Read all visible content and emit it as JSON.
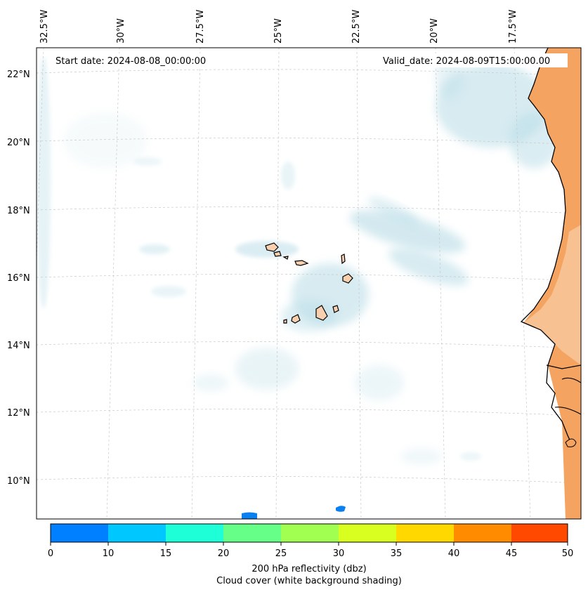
{
  "map": {
    "start_date": "Start date: 2024-08-08_00:00:00",
    "valid_date": "Valid_date: 2024-08-09T15:00:00.00",
    "lon_labels": [
      "32.5°W",
      "30°W",
      "27.5°W",
      "25°W",
      "22.5°W",
      "20°W",
      "17.5°W"
    ],
    "lat_labels": [
      "22°N",
      "20°N",
      "18°N",
      "16°N",
      "14°N",
      "12°N",
      "10°N"
    ],
    "colors": {
      "land": "#f4a460",
      "land_light": "#f7c79b",
      "island": "#f8d0b0",
      "cloud": "#b7dce6",
      "coast": "#000000",
      "grid": "#c8c8c8"
    }
  },
  "colorbar": {
    "ticks": [
      "0",
      "10",
      "15",
      "20",
      "25",
      "30",
      "35",
      "40",
      "45",
      "50"
    ],
    "colors": [
      "#0080ff",
      "#00c8ff",
      "#1effd8",
      "#66ff88",
      "#a0ff50",
      "#d8ff20",
      "#ffd800",
      "#ff8c00",
      "#ff4800"
    ],
    "label_line1": "200 hPa reflectivity (dbz)",
    "label_line2": "Cloud cover (white background shading)"
  }
}
